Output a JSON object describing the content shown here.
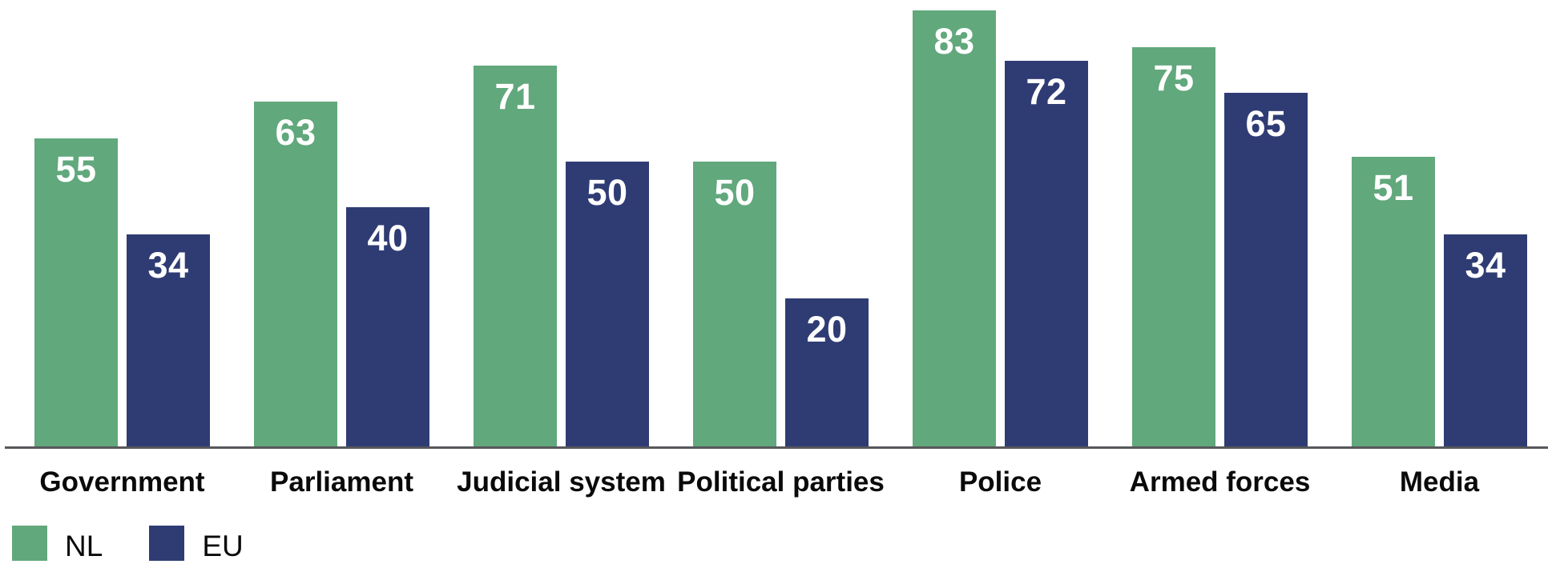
{
  "chart_data": {
    "type": "bar",
    "title": "",
    "categories": [
      "Government",
      "Parliament",
      "Judicial system",
      "Political parties",
      "Police",
      "Armed forces",
      "Media"
    ],
    "series": [
      {
        "name": "NL",
        "color": "#61A87C",
        "values": [
          55,
          63,
          71,
          50,
          83,
          75,
          51
        ]
      },
      {
        "name": "EU",
        "color": "#2F3C74",
        "values": [
          34,
          40,
          50,
          20,
          72,
          65,
          34
        ]
      }
    ],
    "value_labels_shown": true,
    "value_label_color": "#FFFFFF",
    "legend_position": "bottom-left",
    "xlabel": "",
    "ylabel": "",
    "y_axis_shown": false,
    "gridlines": false,
    "baseline_color": "#57585C",
    "background_color": "#FFFFFF"
  }
}
